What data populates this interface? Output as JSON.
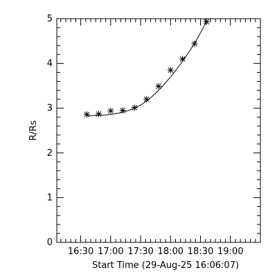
{
  "chart_data": {
    "type": "scatter",
    "xlabel": "Start Time (29-Aug-25 16:06:07)",
    "ylabel": "R/Rs",
    "xlim": [
      "16:06",
      "19:30"
    ],
    "ylim": [
      0,
      5
    ],
    "x_ticks": [
      "16:30",
      "17:00",
      "17:30",
      "18:00",
      "18:30",
      "19:00"
    ],
    "y_ticks": [
      "0",
      "1",
      "2",
      "3",
      "4",
      "5"
    ],
    "grid": false,
    "series": [
      {
        "marker": "asterisk",
        "x": [
          "16:36",
          "16:48",
          "17:00",
          "17:12",
          "17:24",
          "17:36",
          "17:48",
          "18:00",
          "18:12",
          "18:24",
          "18:36"
        ],
        "y": [
          2.86,
          2.87,
          2.94,
          2.95,
          3.01,
          3.2,
          3.49,
          3.85,
          4.1,
          4.44,
          4.93
        ]
      }
    ],
    "fit_line": {
      "x": [
        "16:36",
        "16:48",
        "17:00",
        "17:12",
        "17:24",
        "17:36",
        "17:48",
        "18:00",
        "18:12",
        "18:24",
        "18:36"
      ],
      "y": [
        2.83,
        2.84,
        2.86,
        2.91,
        3.0,
        3.16,
        3.4,
        3.7,
        4.05,
        4.45,
        4.93
      ]
    }
  }
}
